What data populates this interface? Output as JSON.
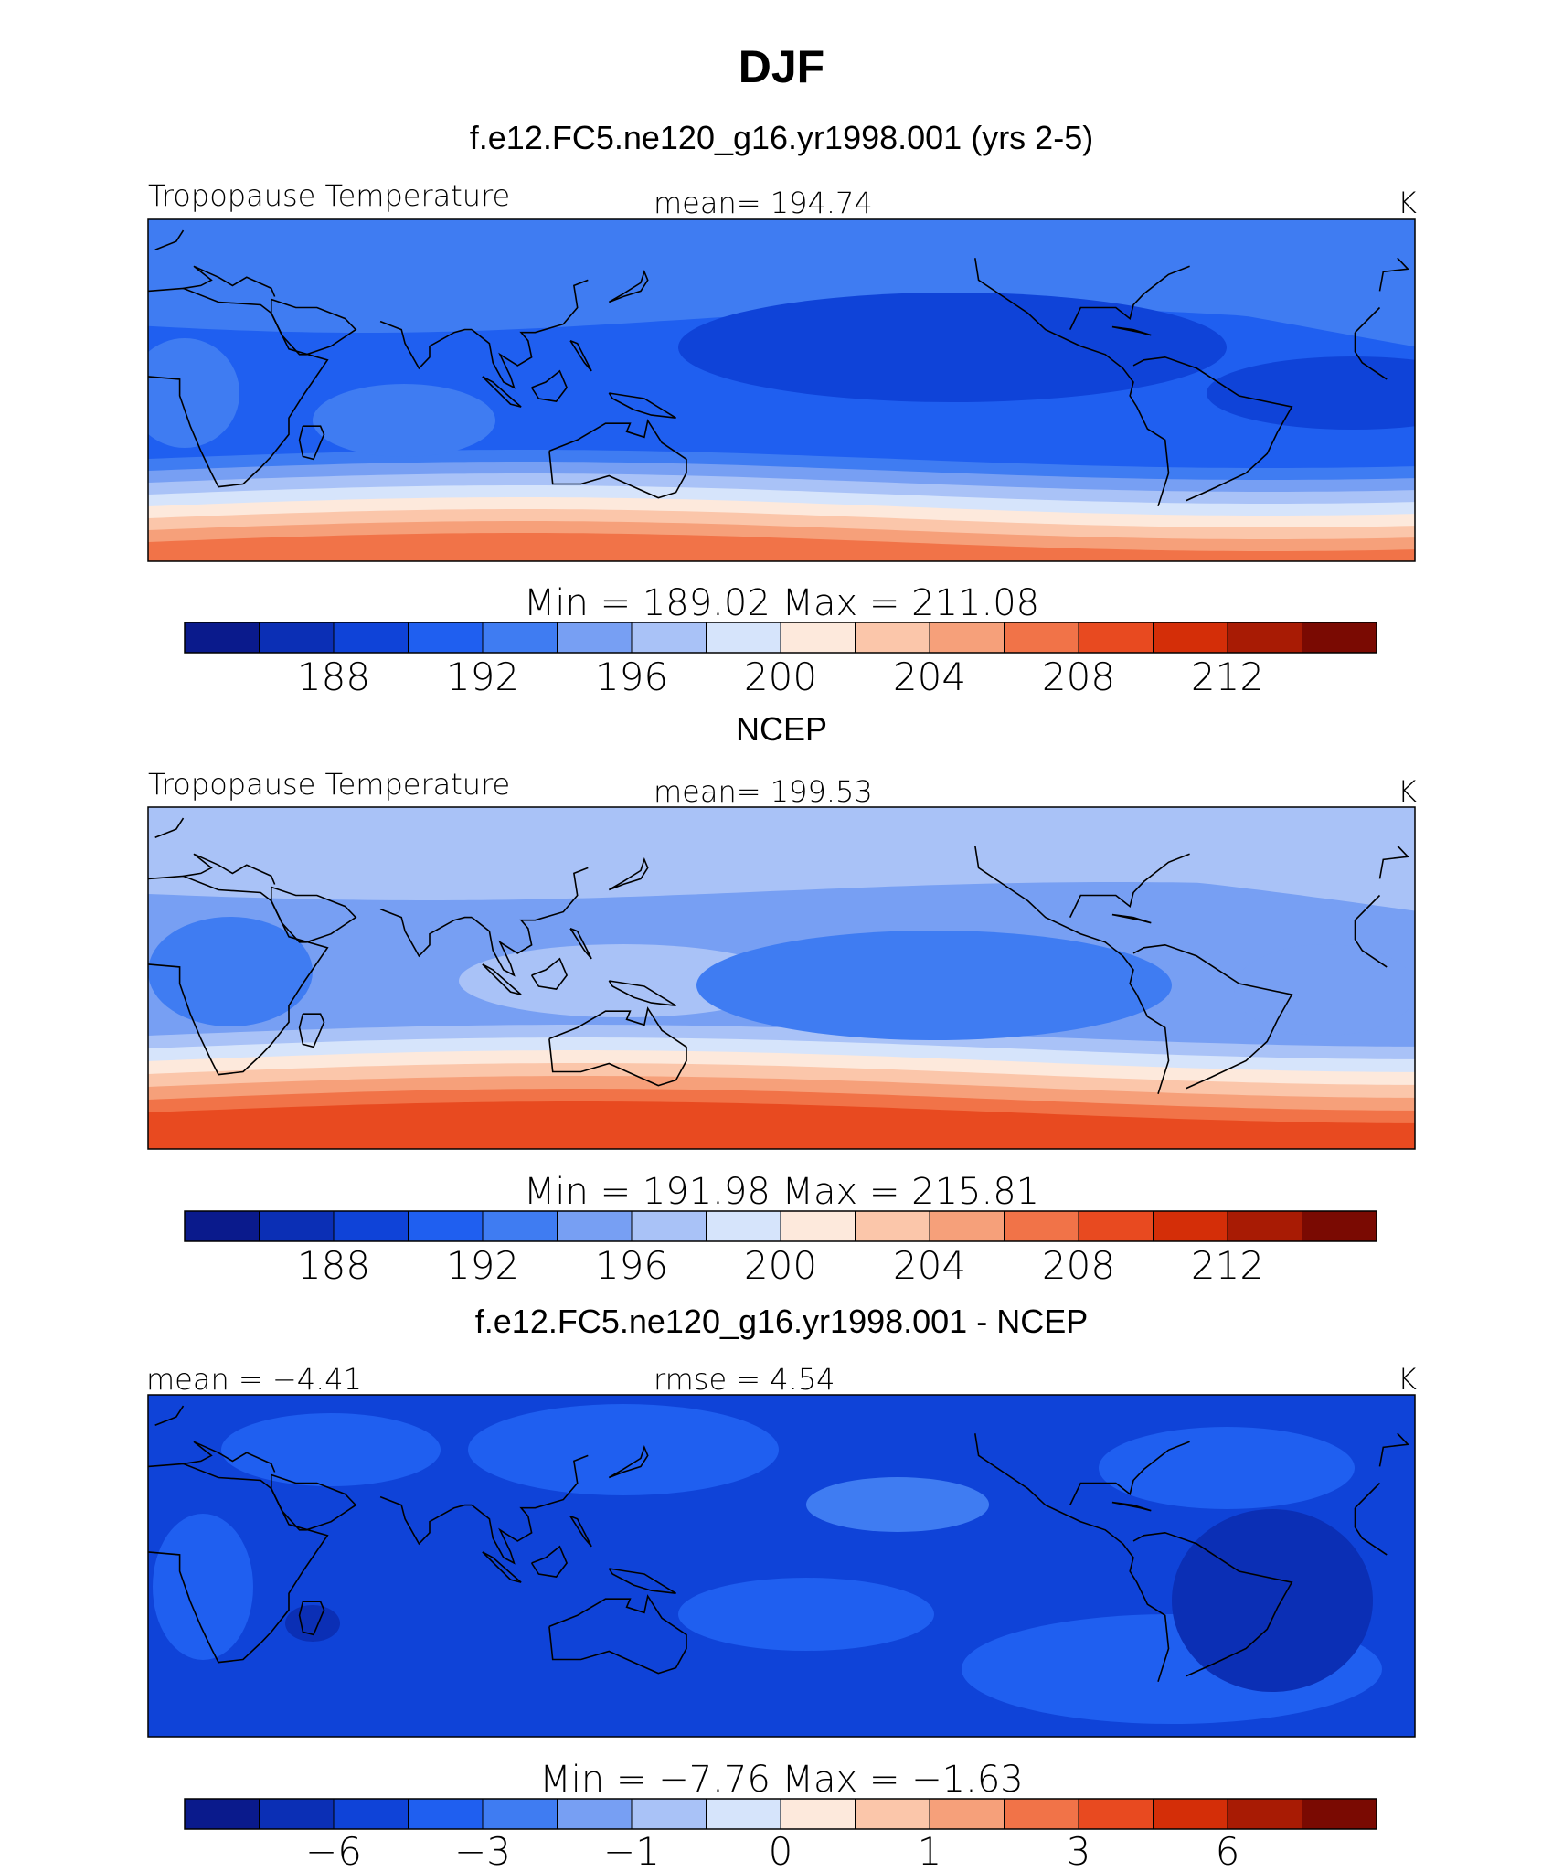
{
  "page": {
    "title": "DJF"
  },
  "panels": [
    {
      "heading": "f.e12.FC5.ne120_g16.yr1998.001 (yrs 2-5)",
      "left_label": "Tropopause Temperature",
      "center_label": "mean= 194.74",
      "right_label": "K",
      "stats": "Min = 189.02 Max = 211.08",
      "colorbar_ticks": [
        "188",
        "192",
        "196",
        "200",
        "204",
        "208",
        "212"
      ],
      "field": "model"
    },
    {
      "heading": "NCEP",
      "left_label": "Tropopause Temperature",
      "center_label": "mean= 199.53",
      "right_label": "K",
      "stats": "Min = 191.98 Max = 215.81",
      "colorbar_ticks": [
        "188",
        "192",
        "196",
        "200",
        "204",
        "208",
        "212"
      ],
      "field": "obs"
    },
    {
      "heading": "f.e12.FC5.ne120_g16.yr1998.001 - NCEP",
      "left_label": "mean =   −4.41",
      "center_label": "rmse =    4.54",
      "right_label": "K",
      "stats": "Min =  −7.76 Max =  −1.63",
      "colorbar_ticks": [
        "−6",
        "−3",
        "−1",
        "0",
        "1",
        "3",
        "6"
      ],
      "field": "diff"
    }
  ],
  "colors": {
    "palette": [
      "#0a1a8c",
      "#0b2fb5",
      "#0f43d8",
      "#1f5ff0",
      "#3f7cf2",
      "#779ff3",
      "#a9c2f7",
      "#d6e4fb",
      "#fde9dc",
      "#fbc6aa",
      "#f6a07a",
      "#f17348",
      "#e84a20",
      "#d42e08",
      "#a81b04",
      "#7a0a02"
    ],
    "coastline": "#000000"
  }
}
